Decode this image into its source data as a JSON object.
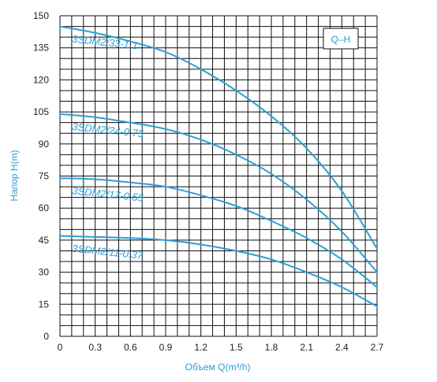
{
  "chart_data": {
    "type": "line",
    "title": "",
    "badge": "Q–H",
    "xlabel": "Объем Q(m³/h)",
    "ylabel": "Напор H(m)",
    "xlim": [
      0,
      2.7
    ],
    "ylim": [
      0,
      150
    ],
    "x_ticks": [
      "0",
      "0.3",
      "0.6",
      "0.9",
      "1.2",
      "1.5",
      "1.8",
      "2.1",
      "2.4",
      "2.7"
    ],
    "y_ticks": [
      "0",
      "15",
      "30",
      "45",
      "60",
      "75",
      "90",
      "105",
      "120",
      "135",
      "150"
    ],
    "grid": true,
    "colors": {
      "series": "#2a9fd8",
      "grid": "#111111",
      "text": "#2a9fd8"
    },
    "series": [
      {
        "name": "3SDM2/33-1.1",
        "x": [
          0,
          0.3,
          0.6,
          0.9,
          1.2,
          1.5,
          1.8,
          2.1,
          2.4,
          2.7
        ],
        "y": [
          145,
          142,
          138,
          133,
          125,
          115,
          103,
          88,
          68,
          41
        ]
      },
      {
        "name": "3SDM2/24-0.75",
        "x": [
          0,
          0.3,
          0.6,
          0.9,
          1.2,
          1.5,
          1.8,
          2.1,
          2.4,
          2.7
        ],
        "y": [
          104,
          102.5,
          100,
          97,
          92,
          85,
          76,
          64,
          49,
          30
        ]
      },
      {
        "name": "3SDM2/17-0.55",
        "x": [
          0,
          0.3,
          0.6,
          0.9,
          1.2,
          1.5,
          1.8,
          2.1,
          2.4,
          2.7
        ],
        "y": [
          74,
          73.5,
          72,
          70,
          66,
          61,
          54,
          46,
          36,
          23
        ]
      },
      {
        "name": "3SDM2/11-0.37",
        "x": [
          0,
          0.3,
          0.6,
          0.9,
          1.2,
          1.5,
          1.8,
          2.1,
          2.4,
          2.7
        ],
        "y": [
          47,
          46.5,
          46,
          45,
          43,
          40,
          36,
          30,
          23,
          14
        ]
      }
    ]
  }
}
